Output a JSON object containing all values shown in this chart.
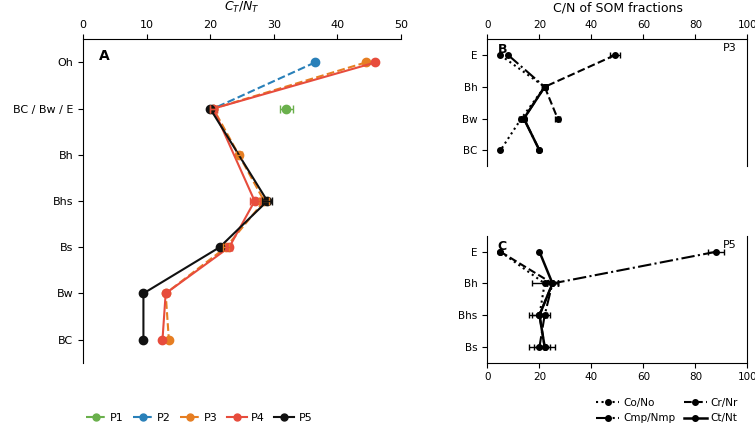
{
  "horizons_A": [
    "Oh",
    "BC / Bw / E",
    "Bh",
    "Bhs",
    "Bs",
    "Bw",
    "BC"
  ],
  "p_data_A": {
    "P1": {
      "color": "#6ab04c",
      "linestyle": "--",
      "x": [
        null,
        32.0,
        null,
        null,
        null,
        null,
        null
      ],
      "xerr": [
        null,
        1.0,
        null,
        null,
        null,
        null,
        null
      ]
    },
    "P2": {
      "color": "#2980b9",
      "linestyle": "--",
      "x": [
        36.5,
        20.5,
        null,
        null,
        null,
        null,
        null
      ],
      "xerr": [
        null,
        null,
        null,
        null,
        null,
        null,
        null
      ]
    },
    "P3": {
      "color": "#e67e22",
      "linestyle": "--",
      "x": [
        44.5,
        20.5,
        24.5,
        28.5,
        22.5,
        13.0,
        13.5
      ],
      "xerr": [
        null,
        0.5,
        0.5,
        0.8,
        0.5,
        null,
        null
      ]
    },
    "P4": {
      "color": "#e74c3c",
      "linestyle": "-",
      "x": [
        46.0,
        20.5,
        null,
        27.0,
        23.0,
        13.0,
        12.5
      ],
      "xerr": [
        null,
        0.5,
        null,
        0.8,
        0.5,
        null,
        null
      ]
    },
    "P5": {
      "color": "#111111",
      "linestyle": "-",
      "x": [
        null,
        20.0,
        null,
        29.0,
        21.5,
        9.5,
        9.5
      ],
      "xerr": [
        null,
        null,
        null,
        0.8,
        null,
        null,
        null
      ]
    }
  },
  "horizons_B": [
    "E",
    "Bh",
    "Bw",
    "BC"
  ],
  "P3_B": {
    "Co_No": {
      "x": [
        5.0,
        22.0,
        13.0,
        5.0
      ],
      "xerr": [
        null,
        1.0,
        1.0,
        null
      ]
    },
    "Cmp_Nmp": {
      "x": [
        8.0,
        22.0,
        14.0,
        20.0
      ],
      "xerr": [
        null,
        1.0,
        1.0,
        null
      ]
    },
    "Cr_Nr": {
      "x": [
        49.0,
        22.0,
        27.0,
        null
      ],
      "xerr": [
        2.0,
        1.0,
        1.0,
        null
      ]
    },
    "Ct_Nt": {
      "x": [
        null,
        22.0,
        14.0,
        20.0
      ],
      "xerr": [
        null,
        null,
        1.0,
        null
      ]
    }
  },
  "horizons_C": [
    "E",
    "Bh",
    "Bhs",
    "Bs"
  ],
  "P5_C": {
    "Co_No": {
      "x": [
        5.0,
        22.0,
        20.0,
        null
      ],
      "xerr": [
        null,
        5.0,
        3.0,
        null
      ]
    },
    "Cmp_Nmp": {
      "x": [
        88.0,
        25.0,
        22.0,
        20.0
      ],
      "xerr": [
        3.0,
        2.0,
        null,
        4.0
      ]
    },
    "Cr_Nr": {
      "x": [
        5.0,
        25.0,
        20.0,
        22.0
      ],
      "xerr": [
        null,
        2.0,
        null,
        null
      ]
    },
    "Ct_Nt": {
      "x": [
        20.0,
        25.0,
        20.0,
        22.0
      ],
      "xerr": [
        null,
        2.0,
        4.0,
        4.0
      ]
    }
  },
  "line_styles": {
    "Co_No": {
      "ls": "dotted",
      "lw": 1.5
    },
    "Cmp_Nmp": {
      "ls": "dashdot",
      "lw": 1.5
    },
    "Cr_Nr": {
      "ls": "dashed",
      "lw": 1.5
    },
    "Ct_Nt": {
      "ls": "solid",
      "lw": 1.8
    }
  }
}
